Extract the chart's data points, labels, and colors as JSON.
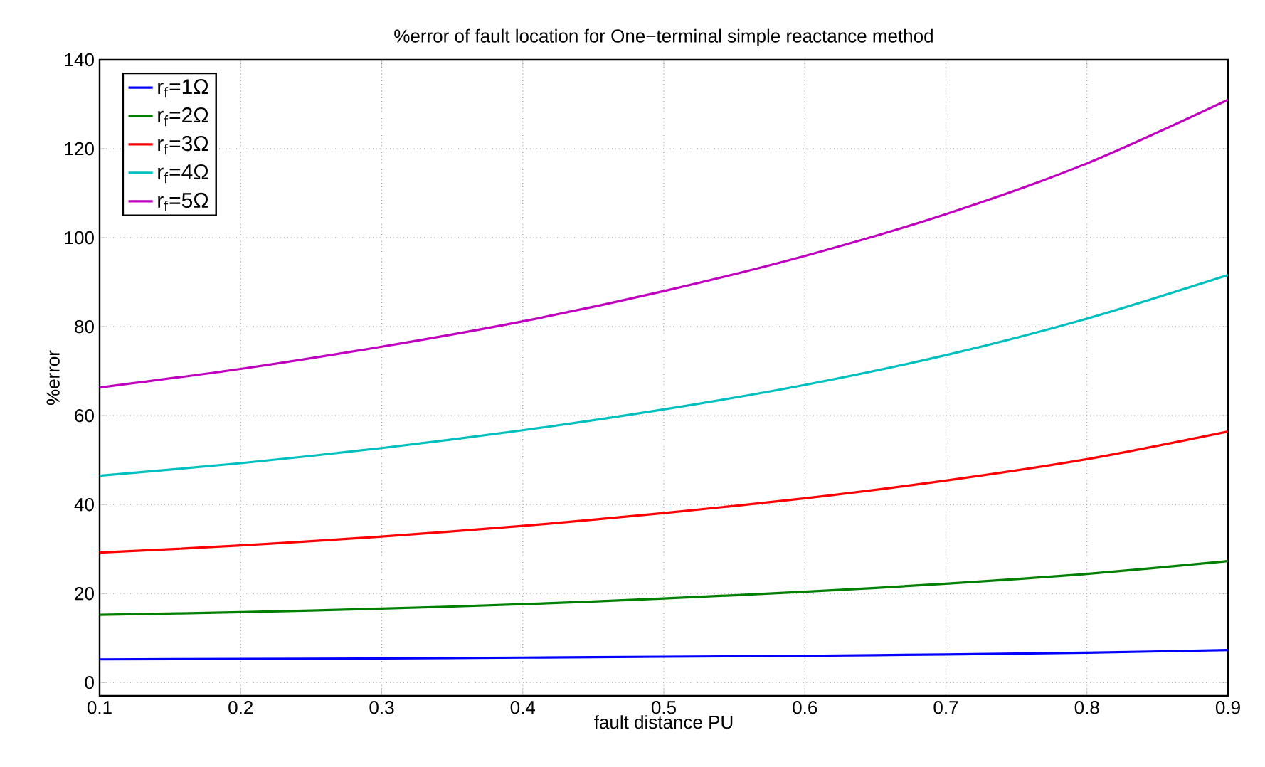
{
  "chart_data": {
    "type": "line",
    "title": "%error of fault location for One−terminal simple reactance method",
    "xlabel": "fault distance PU",
    "ylabel": "%error",
    "x": [
      0.1,
      0.2,
      0.3,
      0.4,
      0.5,
      0.6,
      0.7,
      0.8,
      0.9
    ],
    "series": [
      {
        "name": "r$_{f}$=1Ω",
        "color": "#0000ff",
        "values": [
          5.2,
          5.3,
          5.4,
          5.6,
          5.8,
          6.0,
          6.3,
          6.7,
          7.3
        ]
      },
      {
        "name": "r$_{f}$=2Ω",
        "color": "#008000",
        "values": [
          15.2,
          15.8,
          16.6,
          17.6,
          18.9,
          20.4,
          22.2,
          24.4,
          27.3
        ]
      },
      {
        "name": "r$_{f}$=3Ω",
        "color": "#ff0000",
        "values": [
          29.2,
          30.8,
          32.8,
          35.2,
          38.1,
          41.4,
          45.4,
          50.2,
          56.4
        ]
      },
      {
        "name": "r$_{f}$=4Ω",
        "color": "#00bfbf",
        "values": [
          46.5,
          49.3,
          52.7,
          56.7,
          61.4,
          66.9,
          73.6,
          81.8,
          91.6
        ]
      },
      {
        "name": "r$_{f}$=5Ω",
        "color": "#bf00bf",
        "values": [
          66.3,
          70.5,
          75.5,
          81.2,
          88.0,
          95.9,
          105.3,
          116.7,
          131.0
        ]
      }
    ],
    "xlim": [
      0.1,
      0.9
    ],
    "ylim": [
      -3,
      140
    ],
    "xticks": [
      0.1,
      0.2,
      0.3,
      0.4,
      0.5,
      0.6,
      0.7,
      0.8,
      0.9
    ],
    "yticks": [
      0,
      20,
      40,
      60,
      80,
      100,
      120,
      140
    ],
    "grid": true,
    "legend": "top left",
    "marker": "none",
    "line_style": "solid"
  }
}
